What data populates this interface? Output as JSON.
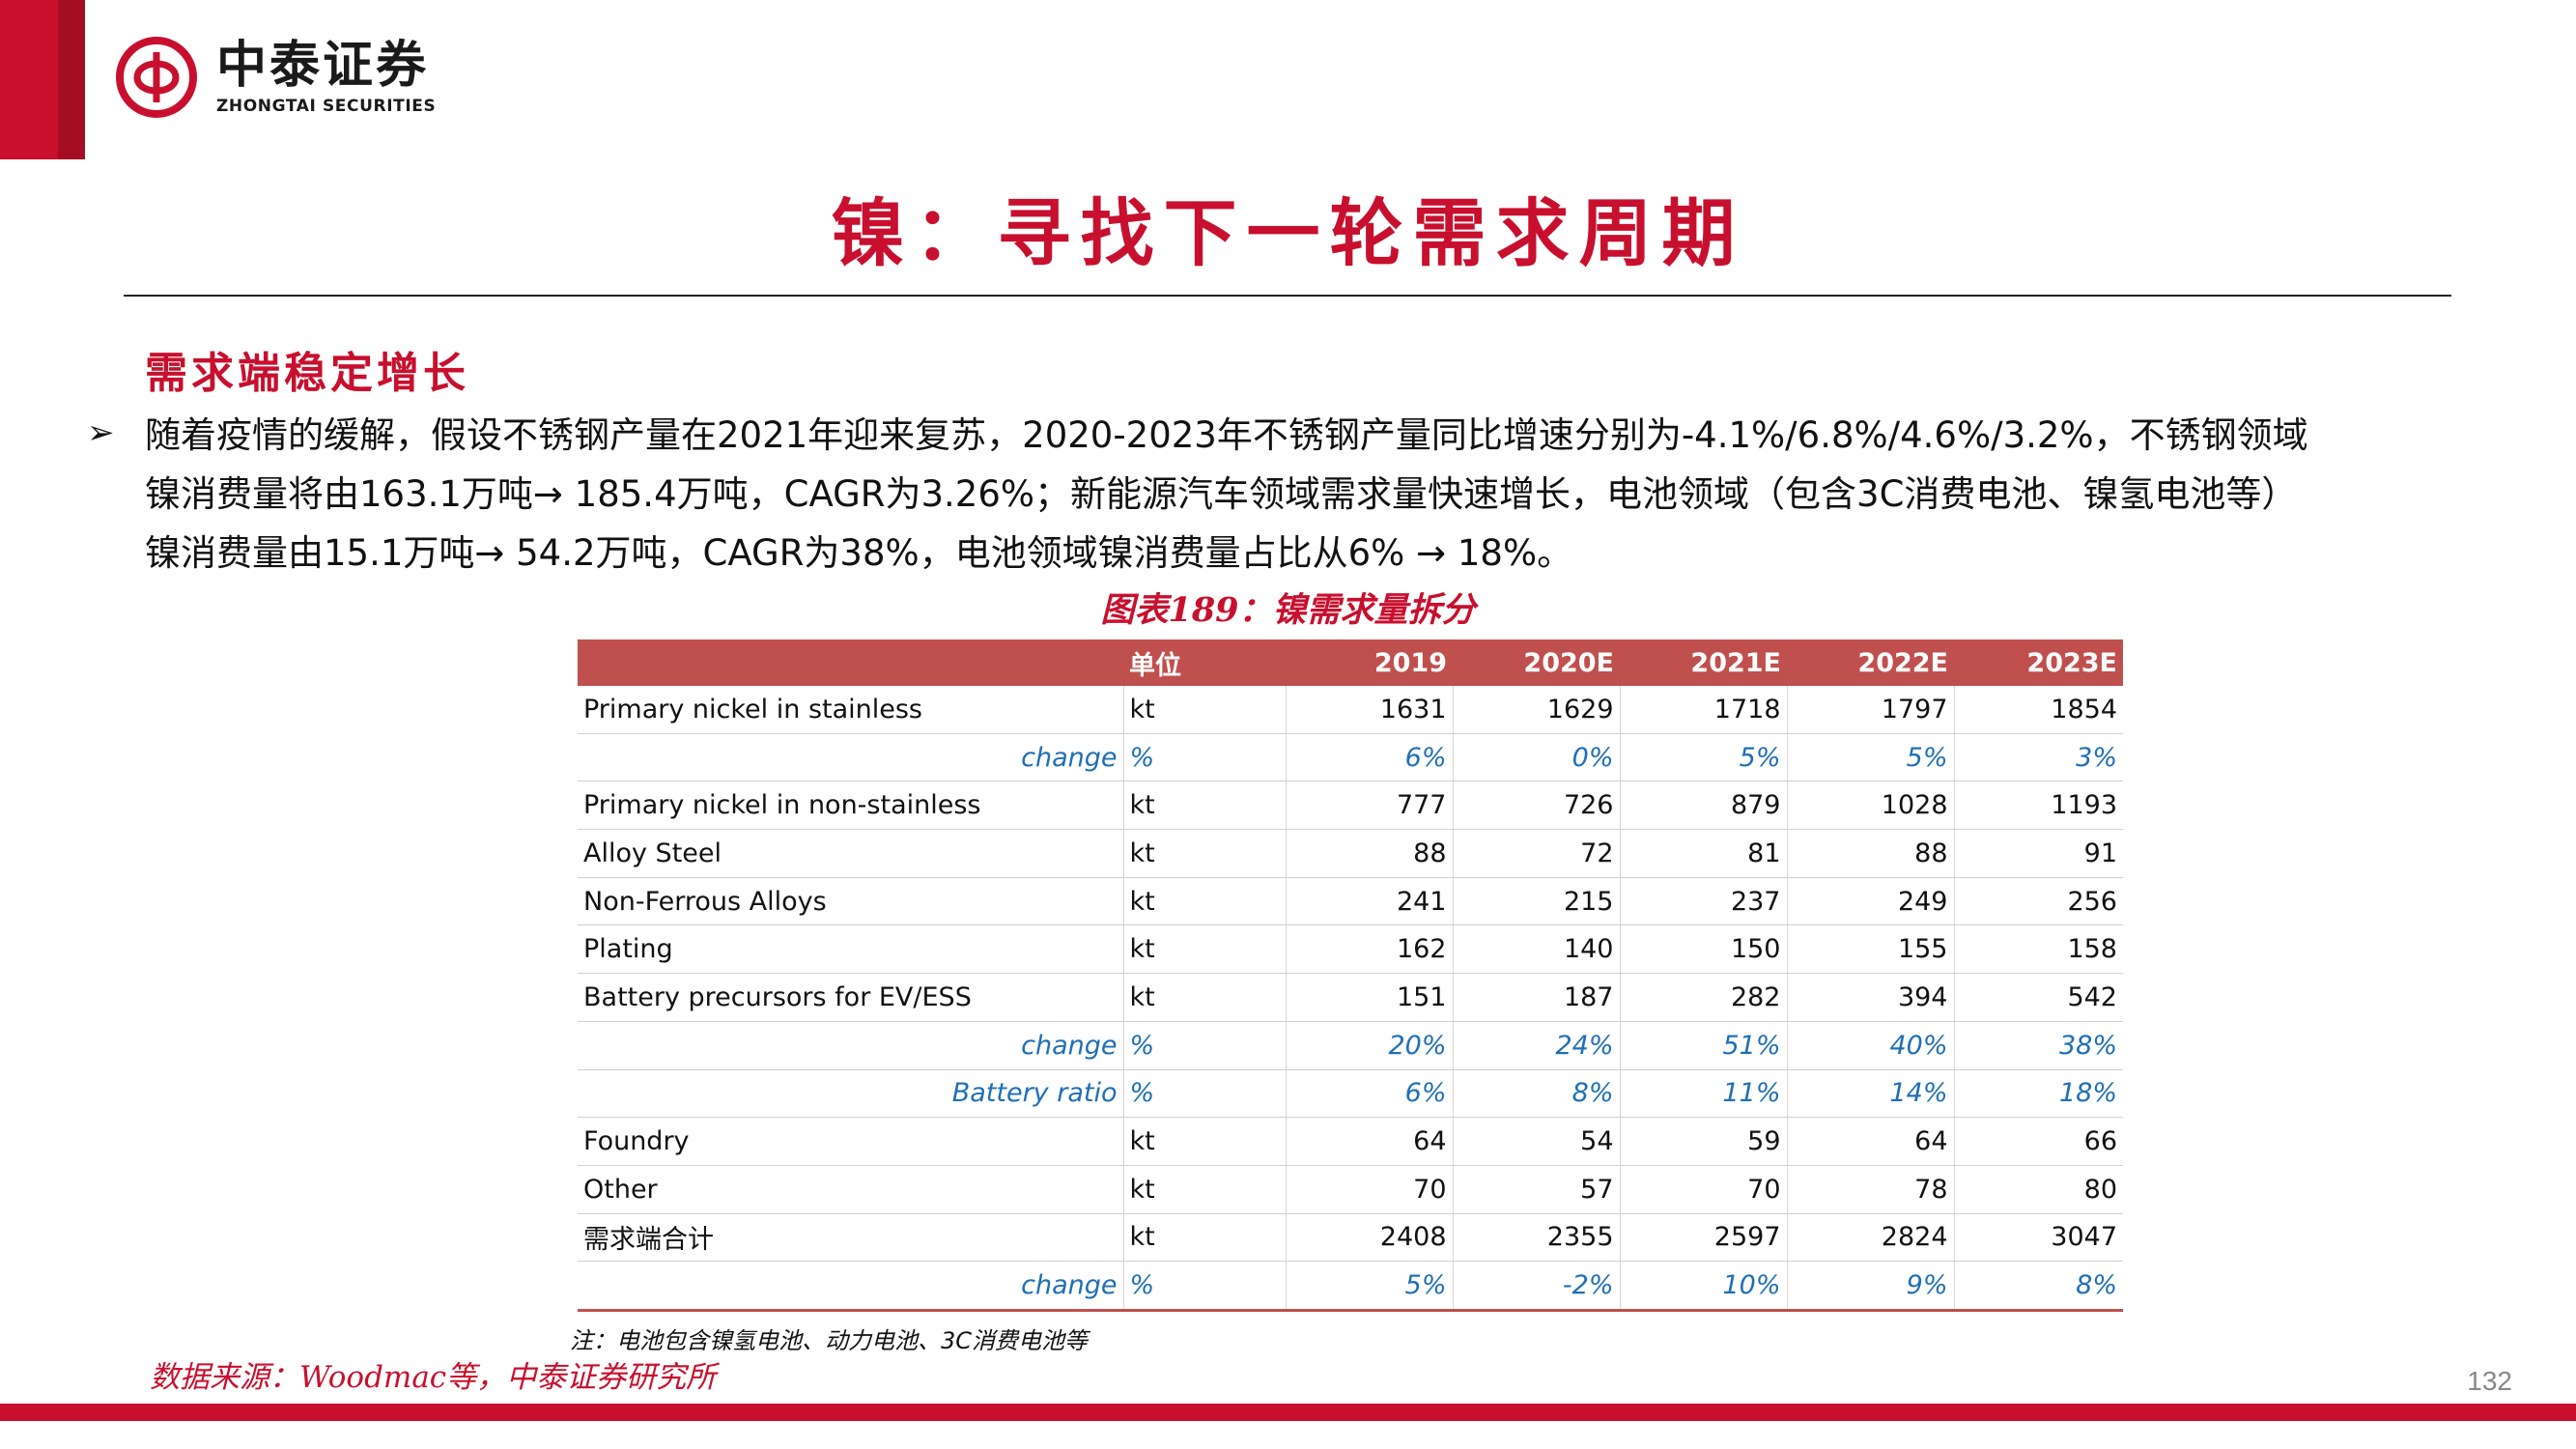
{
  "brand": {
    "name_cn": "中泰证券",
    "name_en": "ZHONGTAI SECURITIES",
    "logo_icon": "zhongtai-logo-icon",
    "color": "#c8102e"
  },
  "title": "镍：寻找下一轮需求周期",
  "section_heading": "需求端稳定增长",
  "bullet_symbol": "➢",
  "paragraph_lines": [
    "随着疫情的缓解，假设不锈钢产量在2021年迎来复苏，2020-2023年不锈钢产量同比增速分别为-4.1%/6.8%/4.6%/3.2%，不锈钢领域",
    "镍消费量将由163.1万吨→ 185.4万吨，CAGR为3.26%；新能源汽车领域需求量快速增长，电池领域（包含3C消费电池、镍氢电池等）",
    "镍消费量由15.1万吨→ 54.2万吨，CAGR为38%，电池领域镍消费量占比从6% → 18%。"
  ],
  "figure_title": "图表189：镍需求量拆分",
  "table": {
    "headers": [
      "",
      "单位",
      "2019",
      "2020E",
      "2021E",
      "2022E",
      "2023E"
    ],
    "rows": [
      {
        "name": "Primary nickel in stainless",
        "unit": "kt",
        "values": [
          "1631",
          "1629",
          "1718",
          "1797",
          "1854"
        ],
        "sub": false
      },
      {
        "name": "change",
        "unit": "%",
        "values": [
          "6%",
          "0%",
          "5%",
          "5%",
          "3%"
        ],
        "sub": true
      },
      {
        "name": "Primary nickel in non-stainless",
        "unit": "kt",
        "values": [
          "777",
          "726",
          "879",
          "1028",
          "1193"
        ],
        "sub": false
      },
      {
        "name": "Alloy Steel",
        "unit": "kt",
        "values": [
          "88",
          "72",
          "81",
          "88",
          "91"
        ],
        "sub": false
      },
      {
        "name": "Non-Ferrous Alloys",
        "unit": "kt",
        "values": [
          "241",
          "215",
          "237",
          "249",
          "256"
        ],
        "sub": false
      },
      {
        "name": "Plating",
        "unit": "kt",
        "values": [
          "162",
          "140",
          "150",
          "155",
          "158"
        ],
        "sub": false
      },
      {
        "name": "Battery precursors for EV/ESS",
        "unit": "kt",
        "values": [
          "151",
          "187",
          "282",
          "394",
          "542"
        ],
        "sub": false
      },
      {
        "name": "change",
        "unit": "%",
        "values": [
          "20%",
          "24%",
          "51%",
          "40%",
          "38%"
        ],
        "sub": true
      },
      {
        "name": "Battery ratio",
        "unit": "%",
        "values": [
          "6%",
          "8%",
          "11%",
          "14%",
          "18%"
        ],
        "sub": true
      },
      {
        "name": "Foundry",
        "unit": "kt",
        "values": [
          "64",
          "54",
          "59",
          "64",
          "66"
        ],
        "sub": false
      },
      {
        "name": "Other",
        "unit": "kt",
        "values": [
          "70",
          "57",
          "70",
          "78",
          "80"
        ],
        "sub": false
      },
      {
        "name": "需求端合计",
        "unit": "kt",
        "values": [
          "2408",
          "2355",
          "2597",
          "2824",
          "3047"
        ],
        "sub": false
      },
      {
        "name": "change",
        "unit": "%",
        "values": [
          "5%",
          "-2%",
          "10%",
          "9%",
          "8%"
        ],
        "sub": true
      }
    ]
  },
  "note": "注：电池包含镍氢电池、动力电池、3C消费电池等",
  "source": "数据来源：Woodmac等，中泰证券研究所",
  "page_number": "132",
  "colors": {
    "header_fill": "#c0504d",
    "sub_row_text": "#1f6fb5"
  }
}
